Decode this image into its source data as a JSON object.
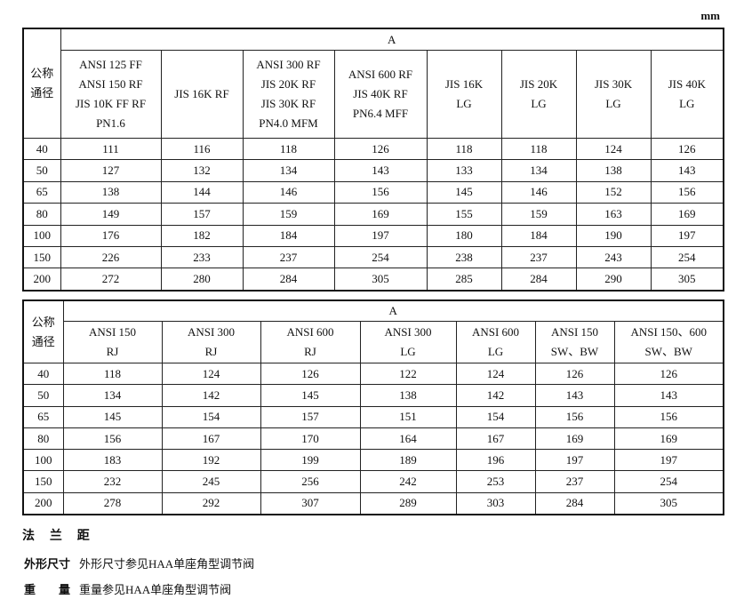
{
  "unit": "mm",
  "table1": {
    "dn_label": [
      "公称",
      "通径"
    ],
    "group_label": "A",
    "columns": [
      [
        "ANSI 125 FF",
        "ANSI 150 RF",
        "JIS 10K FF RF",
        "PN1.6"
      ],
      [
        "JIS 16K RF"
      ],
      [
        "ANSI 300 RF",
        "JIS 20K RF",
        "JIS 30K RF",
        "PN4.0 MFM"
      ],
      [
        "ANSI 600 RF",
        "JIS 40K RF",
        "PN6.4 MFF"
      ],
      [
        "JIS 16K",
        "LG"
      ],
      [
        "JIS 20K",
        "LG"
      ],
      [
        "JIS 30K",
        "LG"
      ],
      [
        "JIS 40K",
        "LG"
      ]
    ],
    "rows": [
      [
        "40",
        "111",
        "116",
        "118",
        "126",
        "118",
        "118",
        "124",
        "126"
      ],
      [
        "50",
        "127",
        "132",
        "134",
        "143",
        "133",
        "134",
        "138",
        "143"
      ],
      [
        "65",
        "138",
        "144",
        "146",
        "156",
        "145",
        "146",
        "152",
        "156"
      ],
      [
        "80",
        "149",
        "157",
        "159",
        "169",
        "155",
        "159",
        "163",
        "169"
      ],
      [
        "100",
        "176",
        "182",
        "184",
        "197",
        "180",
        "184",
        "190",
        "197"
      ],
      [
        "150",
        "226",
        "233",
        "237",
        "254",
        "238",
        "237",
        "243",
        "254"
      ],
      [
        "200",
        "272",
        "280",
        "284",
        "305",
        "285",
        "284",
        "290",
        "305"
      ]
    ]
  },
  "table2": {
    "dn_label": [
      "公称",
      "通径"
    ],
    "group_label": "A",
    "columns": [
      [
        "ANSI 150",
        "RJ"
      ],
      [
        "ANSI 300",
        "RJ"
      ],
      [
        "ANSI 600",
        "RJ"
      ],
      [
        "ANSI 300",
        "LG"
      ],
      [
        "ANSI 600",
        "LG"
      ],
      [
        "ANSI 150",
        "SW、BW"
      ],
      [
        "ANSI 150、600",
        "SW、BW"
      ]
    ],
    "rows": [
      [
        "40",
        "118",
        "124",
        "126",
        "122",
        "124",
        "126",
        "126"
      ],
      [
        "50",
        "134",
        "142",
        "145",
        "138",
        "142",
        "143",
        "143"
      ],
      [
        "65",
        "145",
        "154",
        "157",
        "151",
        "154",
        "156",
        "156"
      ],
      [
        "80",
        "156",
        "167",
        "170",
        "164",
        "167",
        "169",
        "169"
      ],
      [
        "100",
        "183",
        "192",
        "199",
        "189",
        "196",
        "197",
        "197"
      ],
      [
        "150",
        "232",
        "245",
        "256",
        "242",
        "253",
        "237",
        "254"
      ],
      [
        "200",
        "278",
        "292",
        "307",
        "289",
        "303",
        "284",
        "305"
      ]
    ]
  },
  "section_title": "法 兰 距",
  "notes": [
    {
      "label": "外形尺寸",
      "text": "外形尺寸参见HAA单座角型调节阀"
    },
    {
      "label": "重　　量",
      "text": "重量参见HAA单座角型调节阀"
    }
  ]
}
